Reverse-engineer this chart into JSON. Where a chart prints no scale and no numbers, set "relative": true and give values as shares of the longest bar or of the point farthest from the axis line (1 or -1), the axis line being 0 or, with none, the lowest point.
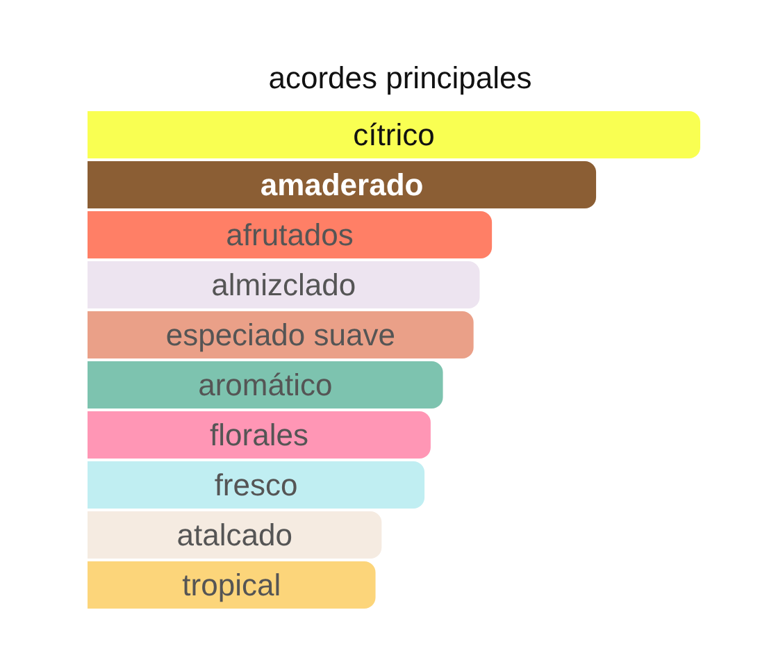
{
  "chart_data": {
    "type": "bar",
    "orientation": "horizontal",
    "relative": true,
    "title": "acordes principales",
    "categories": [
      "cítrico",
      "amaderado",
      "afrutados",
      "almizclado",
      "especiado suave",
      "aromático",
      "florales",
      "fresco",
      "atalcado",
      "tropical"
    ],
    "values": [
      1,
      0.83,
      0.66,
      0.64,
      0.63,
      0.58,
      0.56,
      0.55,
      0.48,
      0.47
    ],
    "colors": [
      "#f9ff52",
      "#8b5e34",
      "#ff7f66",
      "#ede4f0",
      "#eaa088",
      "#7dc3af",
      "#ff96b5",
      "#c0eef2",
      "#f5ebe1",
      "#fcd57a"
    ]
  }
}
